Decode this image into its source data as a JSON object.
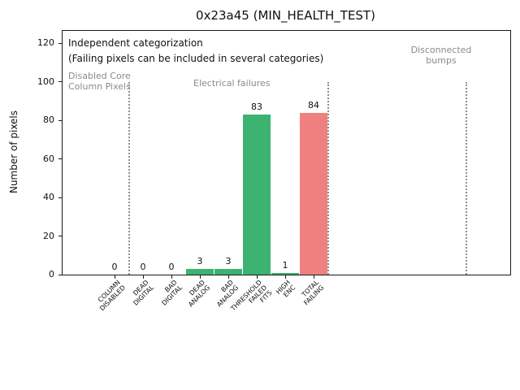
{
  "chart_data": {
    "type": "bar",
    "title": "0x23a45 (MIN_HEALTH_TEST)",
    "xlabel": "",
    "ylabel": "Number of pixels",
    "categories": [
      "COLUMN\nDISABLED",
      "DEAD\nDIGITAL",
      "BAD\nDIGITAL",
      "DEAD\nANALOG",
      "BAD\nANALOG",
      "THRESHOLD\nFAILED\nFITS",
      "HIGH\nENC",
      "TOTAL\nFAILING"
    ],
    "values": [
      0,
      0,
      0,
      3,
      3,
      83,
      1,
      84
    ],
    "bar_colors": [
      "#3cb371",
      "#3cb371",
      "#3cb371",
      "#3cb371",
      "#3cb371",
      "#3cb371",
      "#3cb371",
      "#f08080"
    ],
    "yticks": [
      0,
      20,
      40,
      60,
      80,
      100,
      120
    ],
    "ylim": [
      0,
      126.5
    ],
    "grid": false,
    "legend": null,
    "value_labels_shown": true,
    "annotations": [
      {
        "text": "Independent categorization",
        "color": "#111111"
      },
      {
        "text": "(Failing pixels can be included in several categories)",
        "color": "#111111"
      }
    ],
    "section_labels": [
      {
        "text": "Disabled Core\nColumn Pixels",
        "color": "#8a8a8a"
      },
      {
        "text": "Electrical failures",
        "color": "#8a8a8a"
      },
      {
        "text": "Disconnected\nbumps",
        "color": "#8a8a8a"
      }
    ],
    "section_dividers_x": [
      0.5,
      7.5,
      12.37
    ],
    "section_divider_ymax": 100,
    "divider_style": "dotted",
    "divider_color": "#909090"
  }
}
